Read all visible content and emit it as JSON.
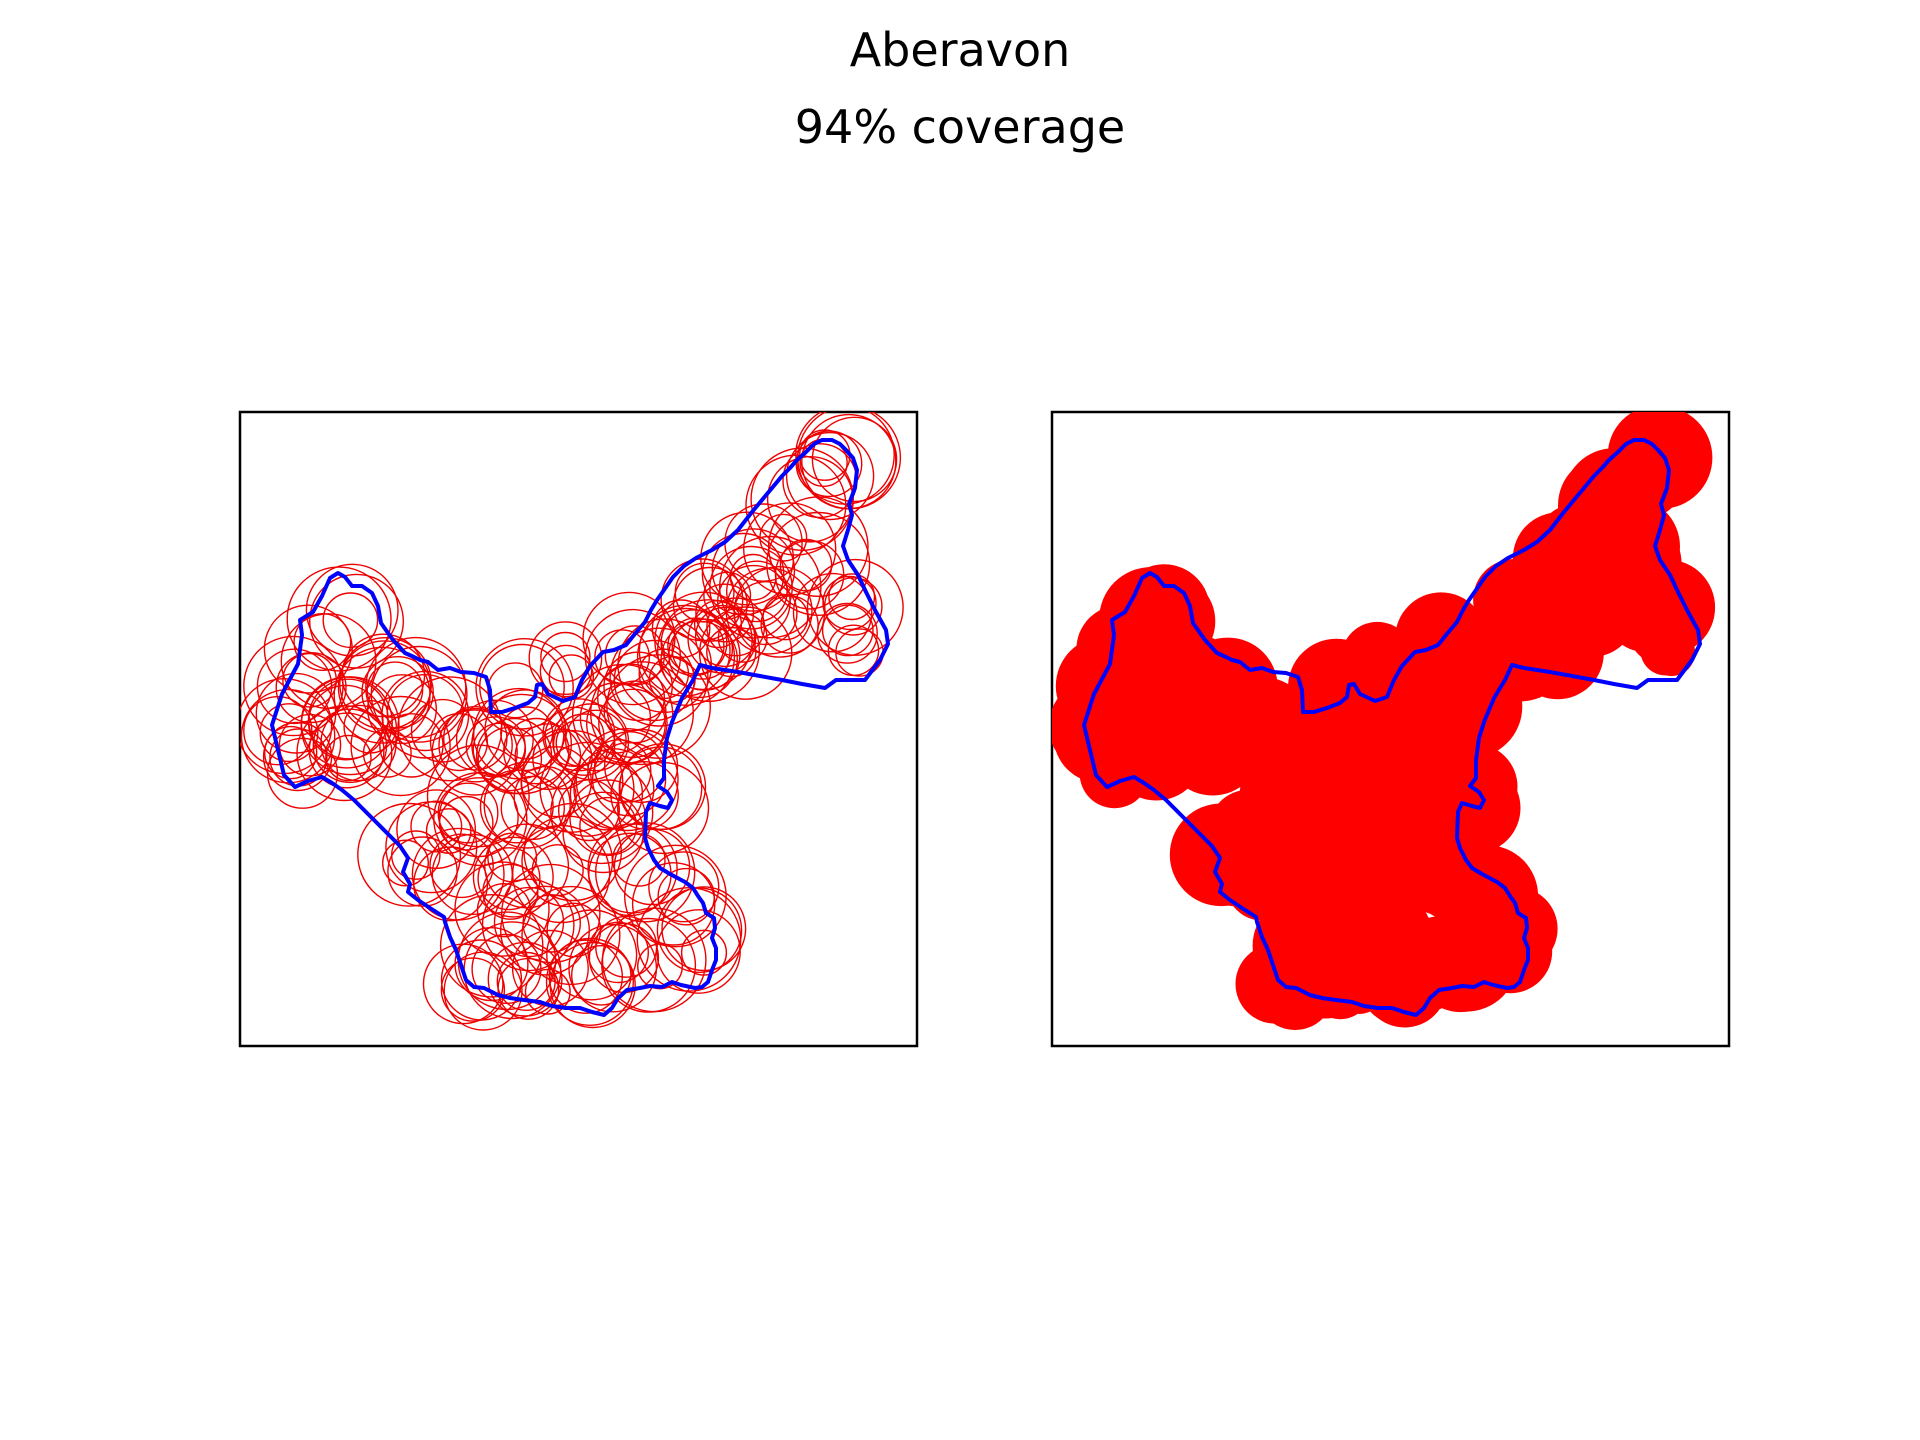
{
  "figure": {
    "title": "Aberavon",
    "subtitle": "94% coverage"
  },
  "colors": {
    "boundary": "#0000ff",
    "circles": "#ee0000",
    "fill": "#ff0000",
    "frame": "#000000",
    "background": "#ffffff"
  },
  "panels": [
    {
      "name": "circles-panel",
      "style": "outlined-circles"
    },
    {
      "name": "filled-panel",
      "style": "filled-union"
    }
  ]
}
